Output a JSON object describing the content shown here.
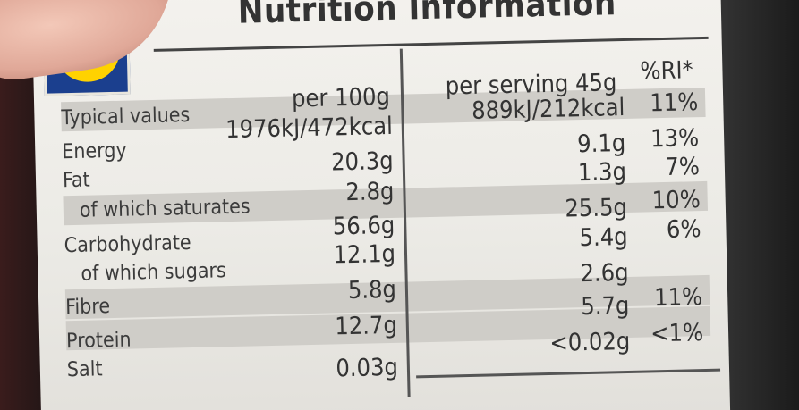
{
  "title": "Nutrition Information",
  "headers": {
    "typical": "Typical values",
    "per100": "per 100g",
    "perServing": "per serving 45g",
    "ri": "%RI*"
  },
  "rows": [
    {
      "label": "Energy",
      "per100": "1976kJ/472kcal",
      "serving": "889kJ/212kcal",
      "ri": "11%"
    },
    {
      "label": "Fat",
      "per100": "20.3g",
      "serving": "9.1g",
      "ri": "13%"
    },
    {
      "label": "of which saturates",
      "per100": "2.8g",
      "serving": "1.3g",
      "ri": "7%"
    },
    {
      "label": "Carbohydrate",
      "per100": "56.6g",
      "serving": "25.5g",
      "ri": "10%"
    },
    {
      "label": "of which sugars",
      "per100": "12.1g",
      "serving": "5.4g",
      "ri": "6%"
    },
    {
      "label": "Fibre",
      "per100": "5.8g",
      "serving": "2.6g",
      "ri": ""
    },
    {
      "label": "Protein",
      "per100": "12.7g",
      "serving": "5.7g",
      "ri": "11%"
    },
    {
      "label": "Salt",
      "per100": "0.03g",
      "serving": "<0.02g",
      "ri": "<1%"
    }
  ],
  "colors": {
    "label_bg": "#f4f2ee",
    "band_bg": "#cfcdc8",
    "text": "#333333",
    "logo_blue": "#1b3f8e",
    "logo_yellow": "#ffd200",
    "logo_red": "#d2242e"
  }
}
